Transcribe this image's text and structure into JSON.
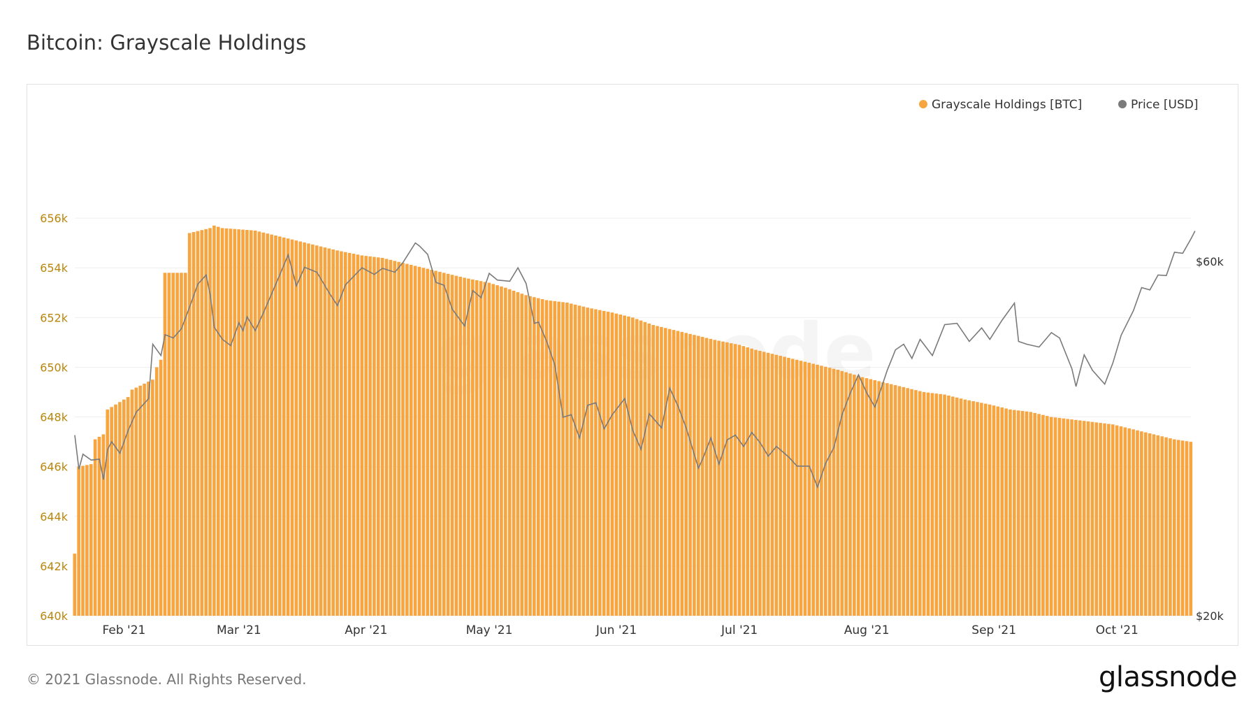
{
  "page": {
    "title": "Bitcoin: Grayscale Holdings",
    "copyright": "© 2021 Glassnode. All Rights Reserved.",
    "logo": "glassnode",
    "watermark": "glassnode"
  },
  "chart_data": {
    "type": "bar",
    "title": "Bitcoin: Grayscale Holdings",
    "colors": {
      "holdings": "#f7a541",
      "price": "#7a7a7a",
      "left_ticks": "#b8860b"
    },
    "legend": {
      "placement": "top-right",
      "items": [
        {
          "label": "Grayscale Holdings [BTC]",
          "color": "#f7a541"
        },
        {
          "label": "Price [USD]",
          "color": "#7a7a7a"
        }
      ]
    },
    "y_left": {
      "ylim": [
        640000,
        658000
      ],
      "ticks": [
        640000,
        642000,
        644000,
        646000,
        648000,
        650000,
        652000,
        654000,
        656000
      ],
      "tick_labels": [
        "640k",
        "642k",
        "644k",
        "646k",
        "648k",
        "650k",
        "652k",
        "654k",
        "656k"
      ]
    },
    "y_right": {
      "scale": "log",
      "ylim": [
        20000,
        80000
      ],
      "ticks": [
        20000,
        60000
      ],
      "tick_labels": [
        "$20k",
        "$60k"
      ]
    },
    "x": {
      "start": "2021-01-20",
      "end": "2021-10-19",
      "ticks": [
        "2021-02-01",
        "2021-03-01",
        "2021-04-01",
        "2021-05-01",
        "2021-06-01",
        "2021-07-01",
        "2021-08-01",
        "2021-09-01",
        "2021-10-01"
      ],
      "tick_labels": [
        "Feb '21",
        "Mar '21",
        "Apr '21",
        "May '21",
        "Jun '21",
        "Jul '21",
        "Aug '21",
        "Sep '21",
        "Oct '21"
      ]
    },
    "grid": true,
    "holdings_series": {
      "name": "Grayscale Holdings [BTC]",
      "points": [
        [
          "2021-01-20",
          642500
        ],
        [
          "2021-01-21",
          646000
        ],
        [
          "2021-01-24",
          646100
        ],
        [
          "2021-01-25",
          647100
        ],
        [
          "2021-01-27",
          647300
        ],
        [
          "2021-01-28",
          648300
        ],
        [
          "2021-01-30",
          648500
        ],
        [
          "2021-02-02",
          648800
        ],
        [
          "2021-02-03",
          649100
        ],
        [
          "2021-02-08",
          649500
        ],
        [
          "2021-02-09",
          650000
        ],
        [
          "2021-02-10",
          650300
        ],
        [
          "2021-02-11",
          653800
        ],
        [
          "2021-02-16",
          653800
        ],
        [
          "2021-02-17",
          655400
        ],
        [
          "2021-02-22",
          655600
        ],
        [
          "2021-02-23",
          655700
        ],
        [
          "2021-02-25",
          655600
        ],
        [
          "2021-03-05",
          655500
        ],
        [
          "2021-03-10",
          655300
        ],
        [
          "2021-03-15",
          655100
        ],
        [
          "2021-03-20",
          654900
        ],
        [
          "2021-03-25",
          654700
        ],
        [
          "2021-03-31",
          654500
        ],
        [
          "2021-04-05",
          654400
        ],
        [
          "2021-04-10",
          654200
        ],
        [
          "2021-04-15",
          654000
        ],
        [
          "2021-04-20",
          653800
        ],
        [
          "2021-04-25",
          653600
        ],
        [
          "2021-05-01",
          653400
        ],
        [
          "2021-05-05",
          653200
        ],
        [
          "2021-05-10",
          652900
        ],
        [
          "2021-05-15",
          652700
        ],
        [
          "2021-05-20",
          652600
        ],
        [
          "2021-05-25",
          652400
        ],
        [
          "2021-05-31",
          652200
        ],
        [
          "2021-06-05",
          652000
        ],
        [
          "2021-06-10",
          651700
        ],
        [
          "2021-06-15",
          651500
        ],
        [
          "2021-06-20",
          651300
        ],
        [
          "2021-06-25",
          651100
        ],
        [
          "2021-07-01",
          650900
        ],
        [
          "2021-07-05",
          650700
        ],
        [
          "2021-07-10",
          650500
        ],
        [
          "2021-07-15",
          650300
        ],
        [
          "2021-07-20",
          650100
        ],
        [
          "2021-07-25",
          649900
        ],
        [
          "2021-07-31",
          649600
        ],
        [
          "2021-08-05",
          649400
        ],
        [
          "2021-08-10",
          649200
        ],
        [
          "2021-08-15",
          649000
        ],
        [
          "2021-08-20",
          648900
        ],
        [
          "2021-08-25",
          648700
        ],
        [
          "2021-08-31",
          648500
        ],
        [
          "2021-09-05",
          648300
        ],
        [
          "2021-09-10",
          648200
        ],
        [
          "2021-09-15",
          648000
        ],
        [
          "2021-09-20",
          647900
        ],
        [
          "2021-09-25",
          647800
        ],
        [
          "2021-09-30",
          647700
        ],
        [
          "2021-10-05",
          647500
        ],
        [
          "2021-10-10",
          647300
        ],
        [
          "2021-10-15",
          647100
        ],
        [
          "2021-10-19",
          647000
        ]
      ]
    },
    "price_series": {
      "name": "Price [USD]",
      "points": [
        [
          "2021-01-20",
          35000
        ],
        [
          "2021-01-21",
          31500
        ],
        [
          "2021-01-22",
          33000
        ],
        [
          "2021-01-24",
          32400
        ],
        [
          "2021-01-26",
          32500
        ],
        [
          "2021-01-27",
          30500
        ],
        [
          "2021-01-28",
          33500
        ],
        [
          "2021-01-29",
          34300
        ],
        [
          "2021-01-31",
          33100
        ],
        [
          "2021-02-02",
          35500
        ],
        [
          "2021-02-04",
          37600
        ],
        [
          "2021-02-07",
          39200
        ],
        [
          "2021-02-08",
          46400
        ],
        [
          "2021-02-10",
          44800
        ],
        [
          "2021-02-11",
          47800
        ],
        [
          "2021-02-13",
          47300
        ],
        [
          "2021-02-15",
          48700
        ],
        [
          "2021-02-17",
          52100
        ],
        [
          "2021-02-19",
          55900
        ],
        [
          "2021-02-21",
          57500
        ],
        [
          "2021-02-22",
          54100
        ],
        [
          "2021-02-23",
          48900
        ],
        [
          "2021-02-25",
          47100
        ],
        [
          "2021-02-27",
          46200
        ],
        [
          "2021-03-01",
          49600
        ],
        [
          "2021-03-02",
          48400
        ],
        [
          "2021-03-03",
          50500
        ],
        [
          "2021-03-05",
          48400
        ],
        [
          "2021-03-07",
          51200
        ],
        [
          "2021-03-10",
          55900
        ],
        [
          "2021-03-13",
          61200
        ],
        [
          "2021-03-15",
          55600
        ],
        [
          "2021-03-17",
          58900
        ],
        [
          "2021-03-20",
          58000
        ],
        [
          "2021-03-23",
          54400
        ],
        [
          "2021-03-25",
          52300
        ],
        [
          "2021-03-27",
          55800
        ],
        [
          "2021-03-31",
          58800
        ],
        [
          "2021-04-03",
          57600
        ],
        [
          "2021-04-05",
          58700
        ],
        [
          "2021-04-08",
          58000
        ],
        [
          "2021-04-10",
          59800
        ],
        [
          "2021-04-13",
          63500
        ],
        [
          "2021-04-14",
          62900
        ],
        [
          "2021-04-16",
          61300
        ],
        [
          "2021-04-18",
          56200
        ],
        [
          "2021-04-20",
          55700
        ],
        [
          "2021-04-22",
          51700
        ],
        [
          "2021-04-25",
          49100
        ],
        [
          "2021-04-27",
          54800
        ],
        [
          "2021-04-29",
          53600
        ],
        [
          "2021-05-01",
          57800
        ],
        [
          "2021-05-03",
          56600
        ],
        [
          "2021-05-06",
          56400
        ],
        [
          "2021-05-08",
          58800
        ],
        [
          "2021-05-10",
          56000
        ],
        [
          "2021-05-12",
          49500
        ],
        [
          "2021-05-13",
          49700
        ],
        [
          "2021-05-15",
          46800
        ],
        [
          "2021-05-17",
          43500
        ],
        [
          "2021-05-19",
          37000
        ],
        [
          "2021-05-21",
          37300
        ],
        [
          "2021-05-23",
          34700
        ],
        [
          "2021-05-25",
          38400
        ],
        [
          "2021-05-27",
          38700
        ],
        [
          "2021-05-29",
          35700
        ],
        [
          "2021-05-31",
          37300
        ],
        [
          "2021-06-03",
          39200
        ],
        [
          "2021-06-05",
          35500
        ],
        [
          "2021-06-07",
          33500
        ],
        [
          "2021-06-09",
          37400
        ],
        [
          "2021-06-12",
          35800
        ],
        [
          "2021-06-14",
          40500
        ],
        [
          "2021-06-16",
          38300
        ],
        [
          "2021-06-18",
          35800
        ],
        [
          "2021-06-21",
          31600
        ],
        [
          "2021-06-22",
          32500
        ],
        [
          "2021-06-24",
          34700
        ],
        [
          "2021-06-26",
          32000
        ],
        [
          "2021-06-28",
          34500
        ],
        [
          "2021-06-30",
          35000
        ],
        [
          "2021-07-02",
          33800
        ],
        [
          "2021-07-04",
          35300
        ],
        [
          "2021-07-06",
          34200
        ],
        [
          "2021-07-08",
          32800
        ],
        [
          "2021-07-10",
          33800
        ],
        [
          "2021-07-13",
          32700
        ],
        [
          "2021-07-15",
          31800
        ],
        [
          "2021-07-18",
          31800
        ],
        [
          "2021-07-20",
          29800
        ],
        [
          "2021-07-22",
          32100
        ],
        [
          "2021-07-24",
          33700
        ],
        [
          "2021-07-26",
          37300
        ],
        [
          "2021-07-28",
          39900
        ],
        [
          "2021-07-30",
          42200
        ],
        [
          "2021-08-01",
          39900
        ],
        [
          "2021-08-03",
          38200
        ],
        [
          "2021-08-06",
          42800
        ],
        [
          "2021-08-08",
          45600
        ],
        [
          "2021-08-10",
          46400
        ],
        [
          "2021-08-12",
          44400
        ],
        [
          "2021-08-14",
          47100
        ],
        [
          "2021-08-17",
          44800
        ],
        [
          "2021-08-20",
          49300
        ],
        [
          "2021-08-23",
          49500
        ],
        [
          "2021-08-26",
          46800
        ],
        [
          "2021-08-29",
          48800
        ],
        [
          "2021-08-31",
          47100
        ],
        [
          "2021-09-03",
          50000
        ],
        [
          "2021-09-06",
          52700
        ],
        [
          "2021-09-07",
          46800
        ],
        [
          "2021-09-09",
          46400
        ],
        [
          "2021-09-12",
          46000
        ],
        [
          "2021-09-15",
          48100
        ],
        [
          "2021-09-17",
          47300
        ],
        [
          "2021-09-20",
          43000
        ],
        [
          "2021-09-21",
          40700
        ],
        [
          "2021-09-23",
          44900
        ],
        [
          "2021-09-25",
          42800
        ],
        [
          "2021-09-28",
          41000
        ],
        [
          "2021-09-30",
          43800
        ],
        [
          "2021-10-02",
          47700
        ],
        [
          "2021-10-05",
          51500
        ],
        [
          "2021-10-07",
          55300
        ],
        [
          "2021-10-09",
          54900
        ],
        [
          "2021-10-11",
          57500
        ],
        [
          "2021-10-13",
          57400
        ],
        [
          "2021-10-15",
          61700
        ],
        [
          "2021-10-17",
          61500
        ],
        [
          "2021-10-19",
          64300
        ],
        [
          "2021-10-20",
          65900
        ]
      ]
    }
  }
}
